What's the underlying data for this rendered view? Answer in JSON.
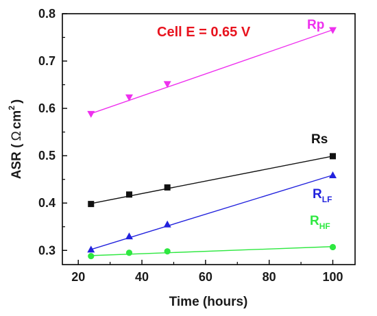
{
  "chart_data": {
    "type": "scatter",
    "xlabel": "Time (hours)",
    "ylabel": "ASR (",
    "ylabel_symbol": "Ω",
    "ylabel_unit": "cm",
    "ylabel_sup": "2",
    "ylabel_close": ")",
    "annotation": "Cell E = 0.65 V",
    "annotation_color": "#e8131e",
    "xlim": [
      15,
      107
    ],
    "ylim": [
      0.27,
      0.8
    ],
    "xticks": [
      20,
      40,
      60,
      80,
      100
    ],
    "yticks": [
      0.3,
      0.4,
      0.5,
      0.6,
      0.7,
      0.8
    ],
    "xtick_labels": [
      "20",
      "40",
      "60",
      "80",
      "100"
    ],
    "ytick_labels": [
      "0.3",
      "0.4",
      "0.5",
      "0.6",
      "0.7",
      "0.8"
    ],
    "grid": false,
    "series": [
      {
        "label": "Rp",
        "sub": "",
        "color": "#ee30ee",
        "marker": "triangle-down",
        "x": [
          24,
          36,
          48,
          100
        ],
        "y": [
          0.588,
          0.623,
          0.651,
          0.765
        ],
        "fit": [
          0.589,
          0.766
        ]
      },
      {
        "label": "Rs",
        "sub": "",
        "color": "#111111",
        "marker": "square",
        "x": [
          24,
          36,
          48,
          100
        ],
        "y": [
          0.398,
          0.418,
          0.433,
          0.499
        ],
        "fit": [
          0.399,
          0.499
        ]
      },
      {
        "label": "R",
        "sub": "LF",
        "color": "#2222dd",
        "marker": "triangle-up",
        "x": [
          24,
          36,
          48,
          100
        ],
        "y": [
          0.302,
          0.33,
          0.355,
          0.459
        ],
        "fit": [
          0.302,
          0.459
        ]
      },
      {
        "label": "R",
        "sub": "HF",
        "color": "#2ee840",
        "marker": "circle",
        "x": [
          24,
          36,
          48,
          100
        ],
        "y": [
          0.288,
          0.295,
          0.298,
          0.307
        ],
        "fit": [
          0.289,
          0.308
        ]
      }
    ]
  }
}
